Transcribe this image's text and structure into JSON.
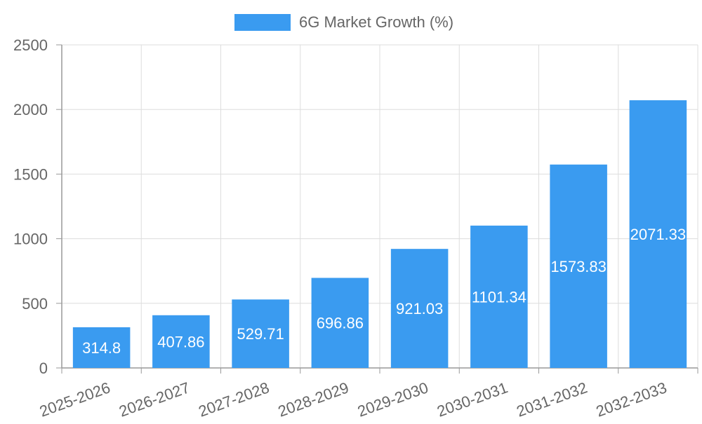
{
  "chart_data": {
    "type": "bar",
    "categories": [
      "2025-2026",
      "2026-2027",
      "2027-2028",
      "2028-2029",
      "2029-2030",
      "2030-2031",
      "2031-2032",
      "2032-2033"
    ],
    "series": [
      {
        "name": "6G Market Growth (%)",
        "values": [
          314.8,
          407.86,
          529.71,
          696.86,
          921.03,
          1101.34,
          1573.83,
          2071.33
        ],
        "color": "#3a9bf0"
      }
    ],
    "data_labels": [
      "314.8",
      "407.86",
      "529.71",
      "696.86",
      "921.03",
      "1101.34",
      "1573.83",
      "2071.33"
    ],
    "y_ticks": [
      "0",
      "500",
      "1000",
      "1500",
      "2000",
      "2500"
    ],
    "ylim": [
      0,
      2500
    ],
    "y_tick_step": 500,
    "grid": true,
    "legend_position": "top-center",
    "title": "",
    "xlabel": "",
    "ylabel": "",
    "colors": {
      "grid": "#dddddd",
      "axis": "#999999",
      "tick_text": "#666666",
      "label_text": "#ffffff",
      "legend_text": "#666666"
    }
  }
}
